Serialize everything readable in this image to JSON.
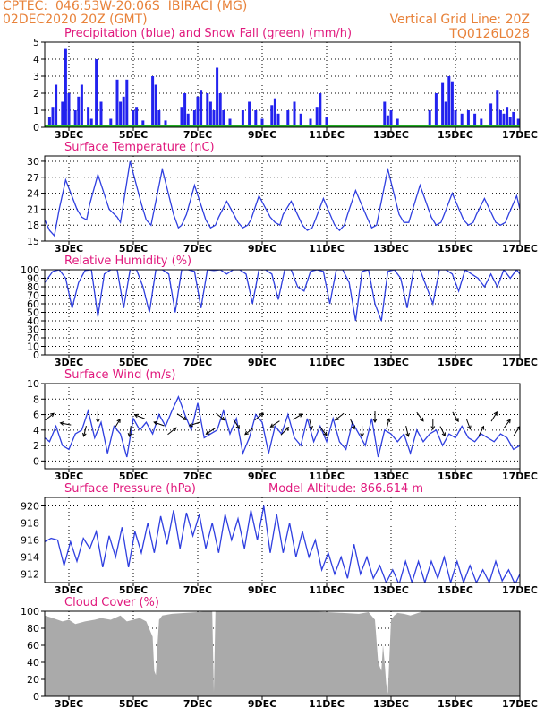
{
  "header": {
    "line1_left": "CPTEC:  046:53W-20:06S  IBIRACI (MG)",
    "line2_left": "02DEC2020 20Z (GMT)",
    "line2_right": "Vertical Grid Line: 20Z",
    "line3_right": "TQ0126L028",
    "color": "#e8823a"
  },
  "colors": {
    "title": "#e0197d",
    "line": "#2f3fe0",
    "precip": "#2222ee",
    "snow": "#22aa22",
    "cloud": "#aaaaaa",
    "axis": "#000000"
  },
  "x_axis": {
    "ticks": [
      "3DEC",
      "5DEC",
      "7DEC",
      "9DEC",
      "11DEC",
      "13DEC",
      "15DEC",
      "17DEC"
    ],
    "tick_days": [
      3,
      5,
      7,
      9,
      11,
      13,
      15,
      17
    ],
    "range_days": [
      2.25,
      17.0
    ]
  },
  "chart_data": [
    {
      "type": "bar",
      "title": "Precipitation (blue) and Snow Fall (green) (mm/h)",
      "ylim": [
        0,
        5
      ],
      "yticks": [
        0,
        1,
        2,
        3,
        4,
        5
      ],
      "series": [
        {
          "name": "Precipitation",
          "x": [
            2.4,
            2.5,
            2.6,
            2.8,
            2.9,
            3.0,
            3.2,
            3.3,
            3.4,
            3.6,
            3.7,
            3.85,
            4.0,
            4.3,
            4.5,
            4.6,
            4.7,
            4.8,
            5.0,
            5.1,
            5.3,
            5.6,
            5.7,
            5.8,
            6.0,
            6.5,
            6.6,
            6.7,
            6.9,
            7.0,
            7.1,
            7.3,
            7.4,
            7.5,
            7.6,
            7.7,
            7.8,
            8.0,
            8.4,
            8.6,
            8.8,
            9.0,
            9.3,
            9.4,
            9.5,
            9.8,
            10.0,
            10.2,
            10.5,
            10.7,
            10.8,
            11.0,
            12.8,
            12.9,
            13.0,
            13.2,
            14.2,
            14.4,
            14.6,
            14.7,
            14.8,
            14.9,
            15.0,
            15.2,
            15.4,
            15.6,
            15.8,
            16.1,
            16.3,
            16.4,
            16.5,
            16.6,
            16.7,
            16.8,
            16.95
          ],
          "values": [
            0.6,
            1.2,
            2.5,
            1.5,
            4.6,
            2.0,
            1.0,
            1.8,
            2.5,
            1.2,
            0.5,
            4.0,
            1.5,
            0.5,
            2.8,
            1.5,
            1.8,
            2.8,
            1.0,
            1.2,
            0.4,
            3.0,
            2.5,
            1.0,
            0.4,
            1.2,
            2.0,
            0.8,
            1.0,
            1.8,
            2.2,
            2.0,
            1.5,
            1.0,
            3.5,
            2.0,
            1.0,
            0.5,
            1.0,
            1.5,
            1.0,
            0.5,
            1.3,
            1.7,
            0.8,
            1.0,
            1.5,
            0.8,
            0.5,
            1.2,
            2.0,
            0.6,
            1.5,
            0.7,
            1.0,
            0.5,
            1.0,
            2.0,
            2.6,
            1.5,
            3.0,
            2.7,
            1.0,
            0.8,
            1.0,
            0.8,
            0.5,
            1.4,
            2.2,
            1.0,
            0.8,
            1.2,
            0.6,
            0.9,
            0.5
          ]
        },
        {
          "name": "Snow Fall",
          "x": [],
          "values": []
        }
      ]
    },
    {
      "type": "line",
      "title": "Surface Temperature (nC)",
      "ylim": [
        15,
        31
      ],
      "yticks": [
        15,
        18,
        21,
        24,
        27,
        30
      ],
      "x": [
        2.25,
        2.4,
        2.55,
        2.7,
        2.9,
        3.25,
        3.4,
        3.55,
        3.65,
        3.9,
        4.25,
        4.5,
        4.6,
        4.9,
        5.25,
        5.4,
        5.55,
        5.65,
        5.9,
        6.25,
        6.4,
        6.5,
        6.65,
        6.9,
        7.25,
        7.4,
        7.55,
        7.65,
        7.9,
        8.25,
        8.4,
        8.55,
        8.65,
        8.9,
        9.25,
        9.4,
        9.55,
        9.65,
        9.9,
        10.25,
        10.4,
        10.55,
        10.65,
        10.9,
        11.25,
        11.4,
        11.55,
        11.65,
        11.9,
        12.25,
        12.4,
        12.55,
        12.65,
        12.9,
        13.25,
        13.4,
        13.55,
        13.65,
        13.9,
        14.25,
        14.4,
        14.55,
        14.65,
        14.9,
        15.25,
        15.4,
        15.55,
        15.65,
        15.9,
        16.25,
        16.4,
        16.55,
        16.65,
        16.9,
        17.0
      ],
      "values": [
        19.0,
        17.0,
        16.0,
        21.0,
        26.5,
        21.0,
        19.5,
        19.0,
        22.0,
        27.5,
        21.0,
        19.5,
        18.5,
        30.0,
        22.0,
        19.0,
        18.0,
        21.0,
        28.5,
        20.0,
        17.5,
        18.0,
        20.0,
        25.5,
        19.0,
        17.5,
        18.0,
        19.5,
        22.5,
        18.5,
        17.5,
        18.0,
        19.0,
        23.5,
        19.5,
        18.5,
        18.0,
        20.0,
        22.5,
        18.0,
        17.0,
        17.5,
        19.0,
        23.0,
        18.0,
        17.0,
        18.0,
        20.0,
        24.5,
        19.5,
        17.5,
        18.0,
        21.0,
        28.5,
        20.0,
        18.5,
        18.5,
        20.5,
        25.5,
        19.5,
        18.0,
        18.5,
        20.0,
        24.0,
        19.0,
        18.0,
        18.5,
        20.0,
        23.0,
        18.5,
        18.0,
        18.5,
        20.0,
        23.5,
        21.0
      ]
    },
    {
      "type": "line",
      "title": "Relative Humidity (%)",
      "ylim": [
        0,
        100
      ],
      "yticks": [
        0,
        10,
        20,
        30,
        40,
        50,
        60,
        70,
        80,
        90,
        100
      ],
      "x": [
        2.25,
        2.5,
        2.7,
        2.9,
        3.1,
        3.3,
        3.5,
        3.7,
        3.9,
        4.1,
        4.3,
        4.5,
        4.7,
        4.9,
        5.1,
        5.3,
        5.5,
        5.7,
        5.9,
        6.1,
        6.3,
        6.5,
        6.7,
        6.9,
        7.1,
        7.3,
        7.5,
        7.7,
        7.9,
        8.1,
        8.3,
        8.5,
        8.7,
        8.9,
        9.1,
        9.3,
        9.5,
        9.7,
        9.9,
        10.1,
        10.3,
        10.5,
        10.7,
        10.9,
        11.1,
        11.3,
        11.5,
        11.7,
        11.9,
        12.1,
        12.3,
        12.5,
        12.7,
        12.9,
        13.1,
        13.3,
        13.5,
        13.7,
        13.9,
        14.1,
        14.3,
        14.5,
        14.7,
        14.9,
        15.1,
        15.3,
        15.5,
        15.7,
        15.9,
        16.1,
        16.3,
        16.5,
        16.7,
        16.9,
        17.0
      ],
      "values": [
        85,
        98,
        100,
        90,
        55,
        85,
        99,
        100,
        45,
        95,
        100,
        100,
        55,
        100,
        100,
        80,
        50,
        100,
        100,
        95,
        50,
        100,
        100,
        98,
        55,
        100,
        99,
        100,
        95,
        100,
        100,
        95,
        60,
        100,
        100,
        95,
        65,
        100,
        100,
        80,
        75,
        98,
        100,
        98,
        60,
        100,
        100,
        85,
        40,
        98,
        100,
        60,
        40,
        98,
        100,
        90,
        55,
        100,
        100,
        80,
        60,
        100,
        100,
        95,
        75,
        100,
        95,
        90,
        80,
        95,
        80,
        100,
        90,
        100,
        95
      ]
    },
    {
      "type": "line",
      "title": "Surface Wind (m/s)",
      "ylim": [
        -1,
        10
      ],
      "yticks": [
        0,
        2,
        4,
        6,
        8,
        10
      ],
      "x": [
        2.25,
        2.4,
        2.6,
        2.8,
        3.0,
        3.2,
        3.4,
        3.6,
        3.8,
        4.0,
        4.2,
        4.4,
        4.6,
        4.8,
        5.0,
        5.2,
        5.4,
        5.6,
        5.8,
        6.0,
        6.2,
        6.4,
        6.6,
        6.8,
        7.0,
        7.2,
        7.4,
        7.6,
        7.8,
        8.0,
        8.2,
        8.4,
        8.6,
        8.8,
        9.0,
        9.2,
        9.4,
        9.6,
        9.8,
        10.0,
        10.2,
        10.4,
        10.6,
        10.8,
        11.0,
        11.2,
        11.4,
        11.6,
        11.8,
        12.0,
        12.2,
        12.4,
        12.6,
        12.8,
        13.0,
        13.2,
        13.4,
        13.6,
        13.8,
        14.0,
        14.2,
        14.4,
        14.6,
        14.8,
        15.0,
        15.2,
        15.4,
        15.6,
        15.8,
        16.0,
        16.2,
        16.4,
        16.6,
        16.8,
        17.0
      ],
      "values": [
        3.0,
        2.5,
        4.5,
        2.0,
        1.5,
        3.5,
        4.0,
        6.5,
        3.0,
        5.0,
        1.0,
        4.5,
        3.5,
        0.5,
        5.5,
        4.0,
        5.0,
        3.5,
        6.0,
        4.5,
        6.5,
        8.3,
        6.0,
        4.0,
        7.5,
        3.0,
        3.5,
        4.0,
        6.5,
        3.5,
        5.5,
        1.0,
        3.0,
        6.0,
        5.0,
        1.0,
        4.5,
        3.5,
        6.0,
        3.0,
        2.0,
        5.5,
        2.5,
        4.5,
        2.5,
        5.5,
        2.5,
        1.5,
        5.0,
        3.5,
        2.0,
        5.5,
        0.5,
        4.0,
        3.5,
        2.5,
        3.5,
        1.0,
        4.0,
        2.5,
        3.5,
        4.0,
        2.0,
        3.5,
        3.0,
        4.5,
        3.0,
        2.5,
        3.5,
        3.0,
        2.5,
        3.5,
        3.0,
        1.5,
        2.0
      ],
      "vectors": {
        "x": [
          2.4,
          2.9,
          3.5,
          3.9,
          4.5,
          4.9,
          5.2,
          5.8,
          6.2,
          6.5,
          6.9,
          7.4,
          7.7,
          8.2,
          8.6,
          8.9,
          9.4,
          9.7,
          10.1,
          10.5,
          10.9,
          11.4,
          11.8,
          12.1,
          12.5,
          12.9,
          13.5,
          13.9,
          14.3,
          14.6,
          15.0,
          15.4,
          15.8,
          16.2,
          16.6,
          16.9
        ],
        "u": [
          1,
          -1,
          -0.3,
          0,
          0.5,
          -0.2,
          -1,
          -1.4,
          1,
          2,
          -1.8,
          -1.5,
          1,
          0.5,
          -1,
          1,
          -1.2,
          0.8,
          1,
          0.3,
          0.6,
          -1,
          0.5,
          0,
          0,
          0.2,
          0.3,
          0.6,
          0,
          0.4,
          0.5,
          0.3,
          0.4,
          0.5,
          0.6,
          0.5
        ],
        "v": [
          0.8,
          0.2,
          -1.2,
          -1.2,
          0.8,
          -1.3,
          0.4,
          0.5,
          0.8,
          -1.3,
          -0.6,
          -1,
          -0.8,
          -0.8,
          -0.8,
          0.8,
          -0.8,
          0.8,
          0.6,
          -1.3,
          -0.8,
          -0.8,
          -1.2,
          -1.2,
          -1.3,
          0.8,
          -1.3,
          -0.8,
          -1.2,
          -0.8,
          -0.8,
          -0.8,
          0.8,
          0.8,
          0.8,
          0.8
        ]
      }
    },
    {
      "type": "line",
      "title": "Surface Pressure (hPa)",
      "annotation": "Model Altitude: 866.614 m",
      "ylim": [
        911,
        921
      ],
      "yticks": [
        912,
        914,
        916,
        918,
        920
      ],
      "x": [
        2.25,
        2.45,
        2.65,
        2.85,
        3.05,
        3.25,
        3.45,
        3.65,
        3.85,
        4.05,
        4.25,
        4.45,
        4.65,
        4.85,
        5.05,
        5.25,
        5.45,
        5.65,
        5.85,
        6.05,
        6.25,
        6.45,
        6.65,
        6.85,
        7.05,
        7.25,
        7.45,
        7.65,
        7.85,
        8.05,
        8.25,
        8.45,
        8.65,
        8.85,
        9.05,
        9.25,
        9.45,
        9.65,
        9.85,
        10.05,
        10.25,
        10.45,
        10.65,
        10.85,
        11.05,
        11.25,
        11.45,
        11.65,
        11.85,
        12.05,
        12.25,
        12.45,
        12.65,
        12.85,
        13.05,
        13.25,
        13.45,
        13.65,
        13.85,
        14.05,
        14.25,
        14.45,
        14.65,
        14.85,
        15.05,
        15.25,
        15.45,
        15.65,
        15.85,
        16.05,
        16.25,
        16.45,
        16.65,
        16.85,
        17.0
      ],
      "values": [
        915.8,
        916.2,
        916.0,
        913.0,
        915.8,
        913.5,
        916.2,
        915.0,
        917.0,
        912.8,
        916.5,
        914.0,
        917.5,
        912.8,
        917.0,
        914.5,
        918.0,
        914.5,
        918.8,
        915.5,
        919.5,
        915.0,
        919.2,
        916.5,
        919.0,
        915.0,
        918.0,
        914.5,
        919.0,
        916.0,
        918.5,
        915.0,
        919.5,
        916.0,
        920.0,
        914.5,
        919.0,
        914.5,
        918.0,
        914.0,
        917.0,
        914.0,
        916.0,
        912.5,
        914.5,
        912.0,
        914.0,
        911.5,
        915.5,
        912.0,
        914.0,
        911.5,
        913.0,
        911.0,
        912.5,
        910.8,
        913.5,
        911.0,
        913.5,
        911.0,
        913.5,
        911.5,
        914.0,
        911.0,
        913.5,
        911.0,
        913.0,
        911.0,
        912.5,
        911.0,
        913.5,
        911.2,
        912.5,
        910.8,
        912.0
      ]
    },
    {
      "type": "area",
      "title": "Cloud Cover (%)",
      "ylim": [
        0,
        100
      ],
      "yticks": [
        0,
        20,
        40,
        60,
        80,
        100
      ],
      "x": [
        2.25,
        2.5,
        2.8,
        3.0,
        3.2,
        3.5,
        3.8,
        4.0,
        4.3,
        4.6,
        4.8,
        5.0,
        5.2,
        5.4,
        5.6,
        5.65,
        5.7,
        5.75,
        5.8,
        5.9,
        6.2,
        6.6,
        7.0,
        7.3,
        7.45,
        7.5,
        7.55,
        7.6,
        8.0,
        8.5,
        9.0,
        9.5,
        10.0,
        10.5,
        11.0,
        11.5,
        12.0,
        12.3,
        12.5,
        12.6,
        12.7,
        12.75,
        12.8,
        12.85,
        12.9,
        13.0,
        13.1,
        13.2,
        13.4,
        13.6,
        14.0,
        14.5,
        15.0,
        15.5,
        16.0,
        16.5,
        17.0
      ],
      "values": [
        95,
        92,
        88,
        90,
        85,
        88,
        90,
        92,
        90,
        95,
        88,
        90,
        92,
        88,
        70,
        30,
        25,
        60,
        90,
        95,
        97,
        98,
        99,
        100,
        100,
        5,
        100,
        100,
        100,
        100,
        100,
        100,
        100,
        100,
        99,
        98,
        97,
        99,
        90,
        40,
        30,
        60,
        40,
        15,
        3,
        90,
        95,
        98,
        97,
        95,
        100,
        100,
        100,
        100,
        100,
        100,
        100
      ]
    }
  ]
}
